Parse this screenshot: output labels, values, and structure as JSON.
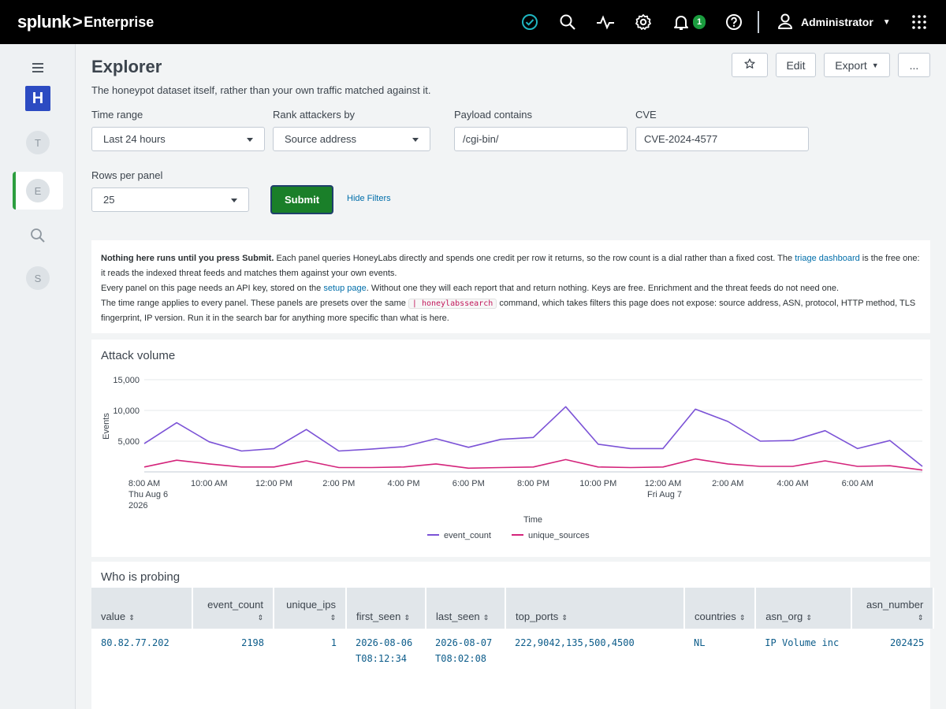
{
  "topbar": {
    "brand": "splunk",
    "brand_sep": ">",
    "product": "Enterprise",
    "notification_count": "1",
    "user_name": "Administrator",
    "icons": [
      "health-check-icon",
      "search-icon",
      "activity-icon",
      "gear-icon",
      "bell-icon",
      "help-icon",
      "user-icon",
      "apps-grid-icon"
    ]
  },
  "rail": {
    "logo": "H",
    "items": [
      "T",
      "E",
      "S"
    ]
  },
  "header": {
    "title": "Explorer",
    "description": "The honeypot dataset itself, rather than your own traffic matched against it.",
    "edit_label": "Edit",
    "export_label": "Export",
    "more_label": "..."
  },
  "filters": {
    "time_range": {
      "label": "Time range",
      "value": "Last 24 hours"
    },
    "rank_by": {
      "label": "Rank attackers by",
      "value": "Source address"
    },
    "payload": {
      "label": "Payload contains",
      "value": "/cgi-bin/"
    },
    "cve": {
      "label": "CVE",
      "value": "CVE-2024-4577"
    },
    "rows": {
      "label": "Rows per panel",
      "value": "25"
    },
    "submit_label": "Submit",
    "hide_label": "Hide Filters"
  },
  "info": {
    "p1_bold": "Nothing here runs until you press Submit.",
    "p1_a": " Each panel queries HoneyLabs directly and spends one credit per row it returns, so the row count is a dial rather than a fixed cost. The ",
    "p1_link": "triage dashboard",
    "p1_b": " is the free one: it reads the indexed threat feeds and matches them against your own events.",
    "p2_a": "Every panel on this page needs an API key, stored on the ",
    "p2_link": "setup page",
    "p2_b": ". Without one they will each report that and return nothing. Keys are free. Enrichment and the threat feeds do not need one.",
    "p3_a": "The time range applies to every panel. These panels are presets over the same ",
    "p3_code": "| honeylabssearch",
    "p3_b": " command, which takes filters this page does not expose: source address, ASN, protocol, HTTP method, TLS fingerprint, IP version. Run it in the search bar for anything more specific than what is here."
  },
  "chart_panel": {
    "title": "Attack volume"
  },
  "chart_data": {
    "type": "line",
    "xlabel": "Time",
    "ylabel": "Events",
    "ylim": [
      0,
      15000
    ],
    "yticks": [
      "5,000",
      "10,000",
      "15,000"
    ],
    "xticks": [
      {
        "label": "8:00 AM",
        "sub": [
          "Thu Aug 6",
          "2026"
        ]
      },
      {
        "label": "10:00 AM",
        "sub": []
      },
      {
        "label": "12:00 PM",
        "sub": []
      },
      {
        "label": "2:00 PM",
        "sub": []
      },
      {
        "label": "4:00 PM",
        "sub": []
      },
      {
        "label": "6:00 PM",
        "sub": []
      },
      {
        "label": "8:00 PM",
        "sub": []
      },
      {
        "label": "10:00 PM",
        "sub": []
      },
      {
        "label": "12:00 AM",
        "sub": [
          "Fri Aug 7"
        ]
      },
      {
        "label": "2:00 AM",
        "sub": []
      },
      {
        "label": "4:00 AM",
        "sub": []
      },
      {
        "label": "6:00 AM",
        "sub": []
      }
    ],
    "x_hours": [
      0,
      1,
      2,
      3,
      4,
      5,
      6,
      7,
      8,
      9,
      10,
      11,
      12,
      13,
      14,
      15,
      16,
      17,
      18,
      19,
      20,
      21,
      22,
      23,
      24
    ],
    "series": [
      {
        "name": "event_count",
        "color": "#7b52d6",
        "values": [
          4600,
          8000,
          4900,
          3400,
          3800,
          6900,
          3400,
          3700,
          4100,
          5400,
          4000,
          5300,
          5600,
          10600,
          4500,
          3800,
          3800,
          10200,
          8200,
          5000,
          5100,
          6700,
          3800,
          5100,
          900
        ]
      },
      {
        "name": "unique_sources",
        "color": "#d4247b",
        "values": [
          800,
          1900,
          1300,
          800,
          800,
          1800,
          700,
          700,
          800,
          1300,
          600,
          700,
          800,
          2000,
          800,
          700,
          800,
          2100,
          1300,
          900,
          900,
          1800,
          900,
          1000,
          300
        ]
      }
    ],
    "legend_position": "bottom"
  },
  "table_panel": {
    "title": "Who is probing",
    "columns": [
      {
        "label": "value",
        "align": "left",
        "width": 128
      },
      {
        "label": "event_count",
        "align": "right",
        "width": 103
      },
      {
        "label": "unique_ips",
        "align": "right",
        "width": 92
      },
      {
        "label": "first_seen",
        "align": "left",
        "width": 101
      },
      {
        "label": "last_seen",
        "align": "left",
        "width": 101
      },
      {
        "label": "top_ports",
        "align": "left",
        "width": 227
      },
      {
        "label": "countries",
        "align": "left",
        "width": 82
      },
      {
        "label": "asn_org",
        "align": "left",
        "width": 122
      },
      {
        "label": "asn_number",
        "align": "right",
        "width": 104
      }
    ],
    "rows": [
      [
        "80.82.77.202",
        "2198",
        "1",
        "2026-08-06T08:12:34",
        "2026-08-07T08:02:08",
        "222,9042,135,500,4500",
        "NL",
        "IP Volume inc",
        "202425"
      ]
    ]
  }
}
